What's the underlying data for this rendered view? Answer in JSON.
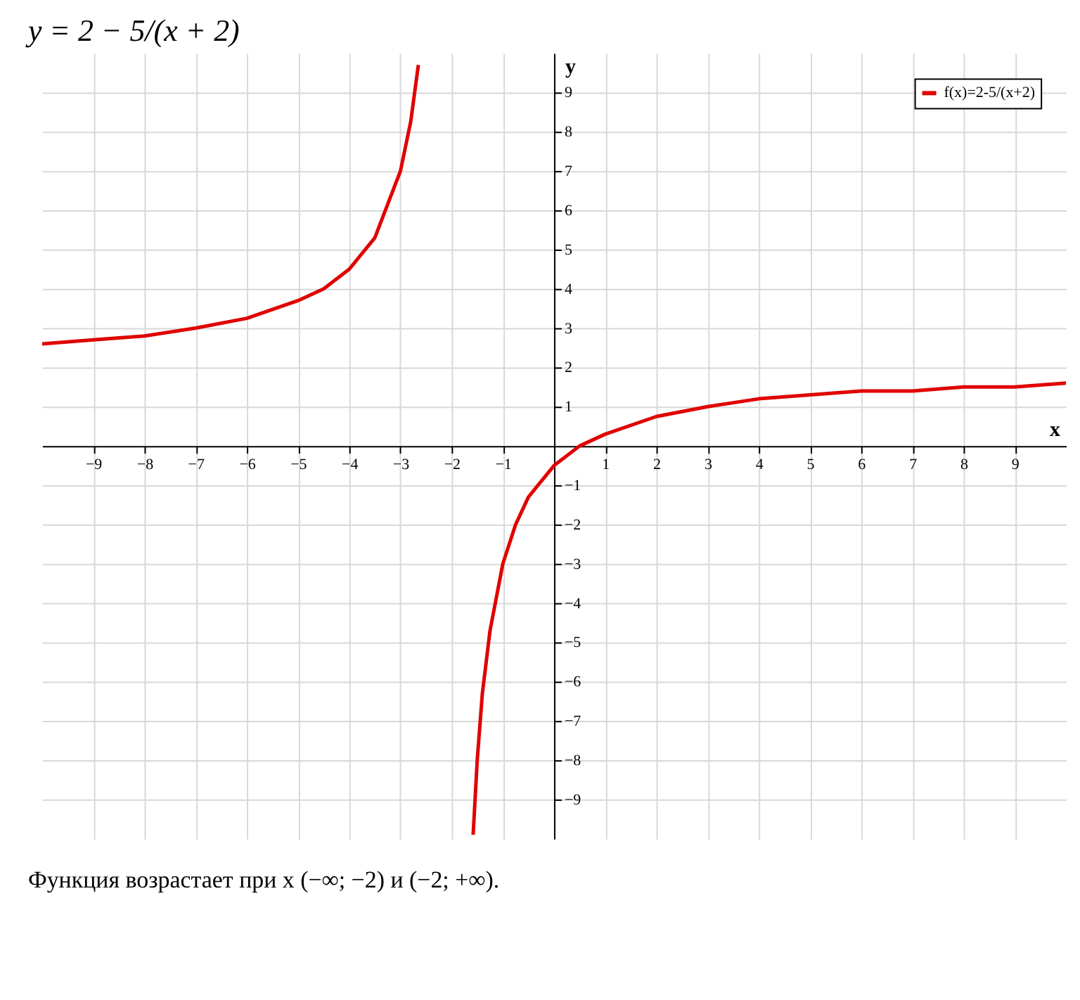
{
  "chart_data": {
    "type": "line",
    "title": "y = 2 − 5/(x + 2)",
    "xlabel": "x",
    "ylabel": "y",
    "annotations": [
      "Функция возрастает при x (−∞; −2) и (−2; +∞)."
    ],
    "xlim": [
      -10,
      10
    ],
    "ylim": [
      -10,
      10
    ],
    "xticks": [
      -9,
      -8,
      -7,
      -6,
      -5,
      -4,
      -3,
      -2,
      -1,
      1,
      2,
      3,
      4,
      5,
      6,
      7,
      8,
      9
    ],
    "yticks": [
      -9,
      -8,
      -7,
      -6,
      -5,
      -4,
      -3,
      -2,
      -1,
      1,
      2,
      3,
      4,
      5,
      6,
      7,
      8,
      9
    ],
    "grid": true,
    "legend": "top right",
    "line_style": "solid",
    "marker": "none",
    "series": [
      {
        "name": "f(x)=2-5/(x+2)",
        "color": "#e00000",
        "x": [
          -10,
          -9,
          -8,
          -7,
          -6,
          -5,
          -4.5,
          -4,
          -3.5,
          -3,
          -2.8,
          -2.65,
          -2,
          -1.58,
          -1.5,
          -1.4,
          -1.25,
          -1,
          -0.75,
          -0.5,
          0,
          0.5,
          1,
          2,
          3,
          4,
          5,
          6,
          7,
          8,
          9,
          10
        ],
        "values": [
          2.6,
          2.7,
          2.8,
          3,
          3.25,
          3.7,
          4,
          4.5,
          5.3,
          7,
          8.25,
          9.7,
          null,
          -9.9,
          -8,
          -6.3,
          -4.7,
          -3,
          -2,
          -1.3,
          -0.5,
          0,
          0.3,
          0.75,
          1,
          1.2,
          1.3,
          1.4,
          1.4,
          1.5,
          1.5,
          1.6
        ]
      }
    ]
  }
}
